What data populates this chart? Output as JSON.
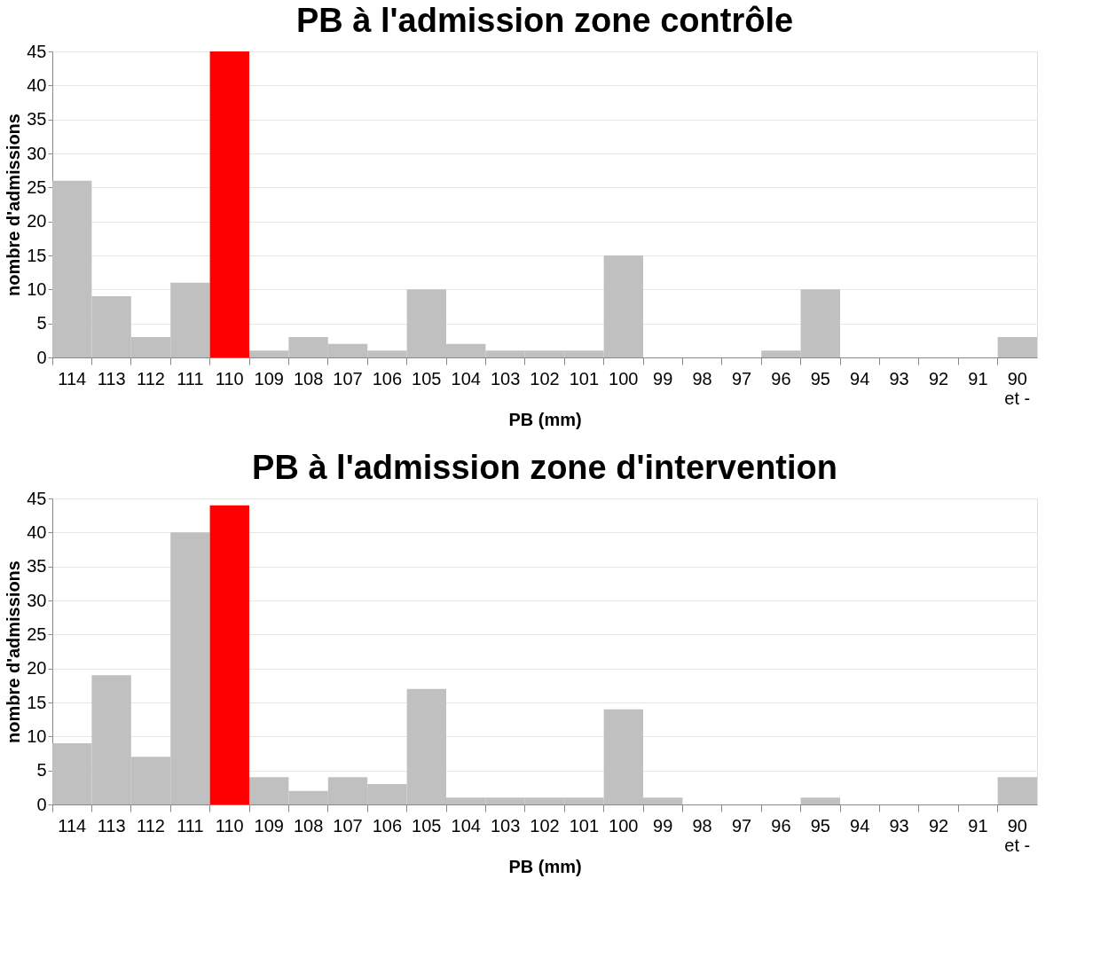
{
  "chart_data": [
    {
      "type": "bar",
      "title": "PB à l'admission zone contrôle",
      "xlabel": "PB (mm)",
      "ylabel": "nombre d'admissions",
      "categories": [
        "114",
        "113",
        "112",
        "111",
        "110",
        "109",
        "108",
        "107",
        "106",
        "105",
        "104",
        "103",
        "102",
        "101",
        "100",
        "99",
        "98",
        "97",
        "96",
        "95",
        "94",
        "93",
        "92",
        "91",
        "90\net -"
      ],
      "values": [
        26,
        9,
        3,
        11,
        45,
        1,
        3,
        2,
        1,
        10,
        2,
        1,
        1,
        1,
        15,
        0,
        0,
        0,
        1,
        10,
        0,
        0,
        0,
        0,
        3
      ],
      "colors": [
        "#c0c0c0",
        "#c0c0c0",
        "#c0c0c0",
        "#c0c0c0",
        "#ff0000",
        "#c0c0c0",
        "#c0c0c0",
        "#c0c0c0",
        "#c0c0c0",
        "#c0c0c0",
        "#c0c0c0",
        "#c0c0c0",
        "#c0c0c0",
        "#c0c0c0",
        "#c0c0c0",
        "#c0c0c0",
        "#c0c0c0",
        "#c0c0c0",
        "#c0c0c0",
        "#c0c0c0",
        "#c0c0c0",
        "#c0c0c0",
        "#c0c0c0",
        "#c0c0c0",
        "#c0c0c0"
      ],
      "ylim": [
        0,
        45
      ],
      "yticks": [
        0,
        5,
        10,
        15,
        20,
        25,
        30,
        35,
        40,
        45
      ],
      "grid": "y"
    },
    {
      "type": "bar",
      "title": "PB à l'admission zone d'intervention",
      "xlabel": "PB (mm)",
      "ylabel": "nombre d'admissions",
      "categories": [
        "114",
        "113",
        "112",
        "111",
        "110",
        "109",
        "108",
        "107",
        "106",
        "105",
        "104",
        "103",
        "102",
        "101",
        "100",
        "99",
        "98",
        "97",
        "96",
        "95",
        "94",
        "93",
        "92",
        "91",
        "90\net -"
      ],
      "values": [
        9,
        19,
        7,
        40,
        44,
        4,
        2,
        4,
        3,
        17,
        1,
        1,
        1,
        1,
        14,
        1,
        0,
        0,
        0,
        1,
        0,
        0,
        0,
        0,
        4
      ],
      "colors": [
        "#c0c0c0",
        "#c0c0c0",
        "#c0c0c0",
        "#c0c0c0",
        "#ff0000",
        "#c0c0c0",
        "#c0c0c0",
        "#c0c0c0",
        "#c0c0c0",
        "#c0c0c0",
        "#c0c0c0",
        "#c0c0c0",
        "#c0c0c0",
        "#c0c0c0",
        "#c0c0c0",
        "#c0c0c0",
        "#c0c0c0",
        "#c0c0c0",
        "#c0c0c0",
        "#c0c0c0",
        "#c0c0c0",
        "#c0c0c0",
        "#c0c0c0",
        "#c0c0c0",
        "#c0c0c0"
      ],
      "ylim": [
        0,
        45
      ],
      "yticks": [
        0,
        5,
        10,
        15,
        20,
        25,
        30,
        35,
        40,
        45
      ],
      "grid": "y"
    }
  ]
}
